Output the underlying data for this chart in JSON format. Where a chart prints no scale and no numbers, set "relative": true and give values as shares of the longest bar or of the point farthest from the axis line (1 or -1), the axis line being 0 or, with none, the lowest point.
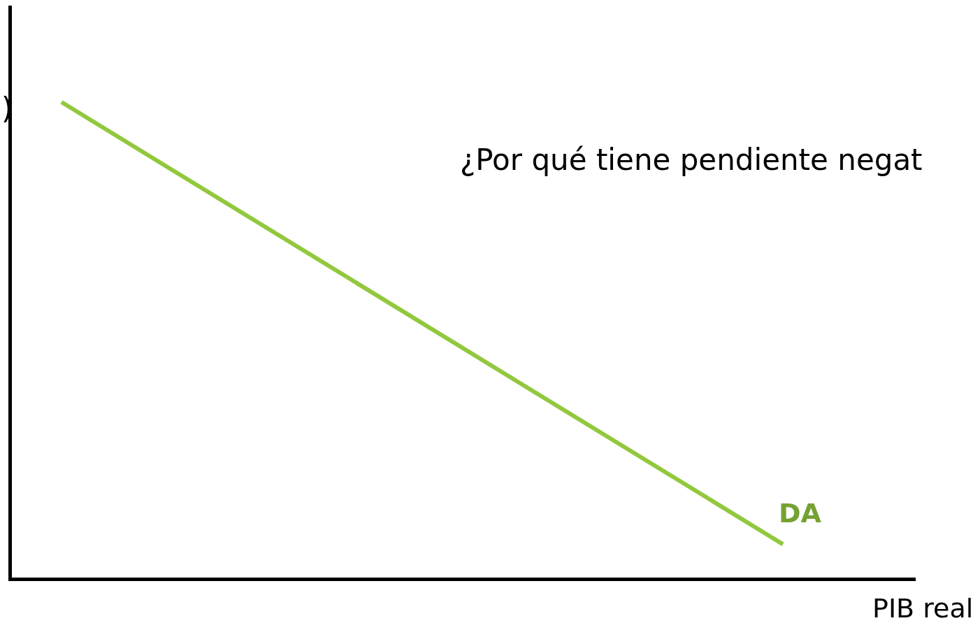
{
  "chart_data": {
    "type": "line",
    "relative": true,
    "xlabel": "PIB real",
    "ylabel": ")",
    "categories": [
      null,
      null
    ],
    "series": [
      {
        "name": "DA",
        "color": "#92c83e",
        "values": [
          1,
          0.07
        ]
      }
    ],
    "annotations": [
      "¿Por qué tiene pendiente negat"
    ],
    "legend": false,
    "marker": "none",
    "line_style": "solid",
    "tick_labels": false
  }
}
